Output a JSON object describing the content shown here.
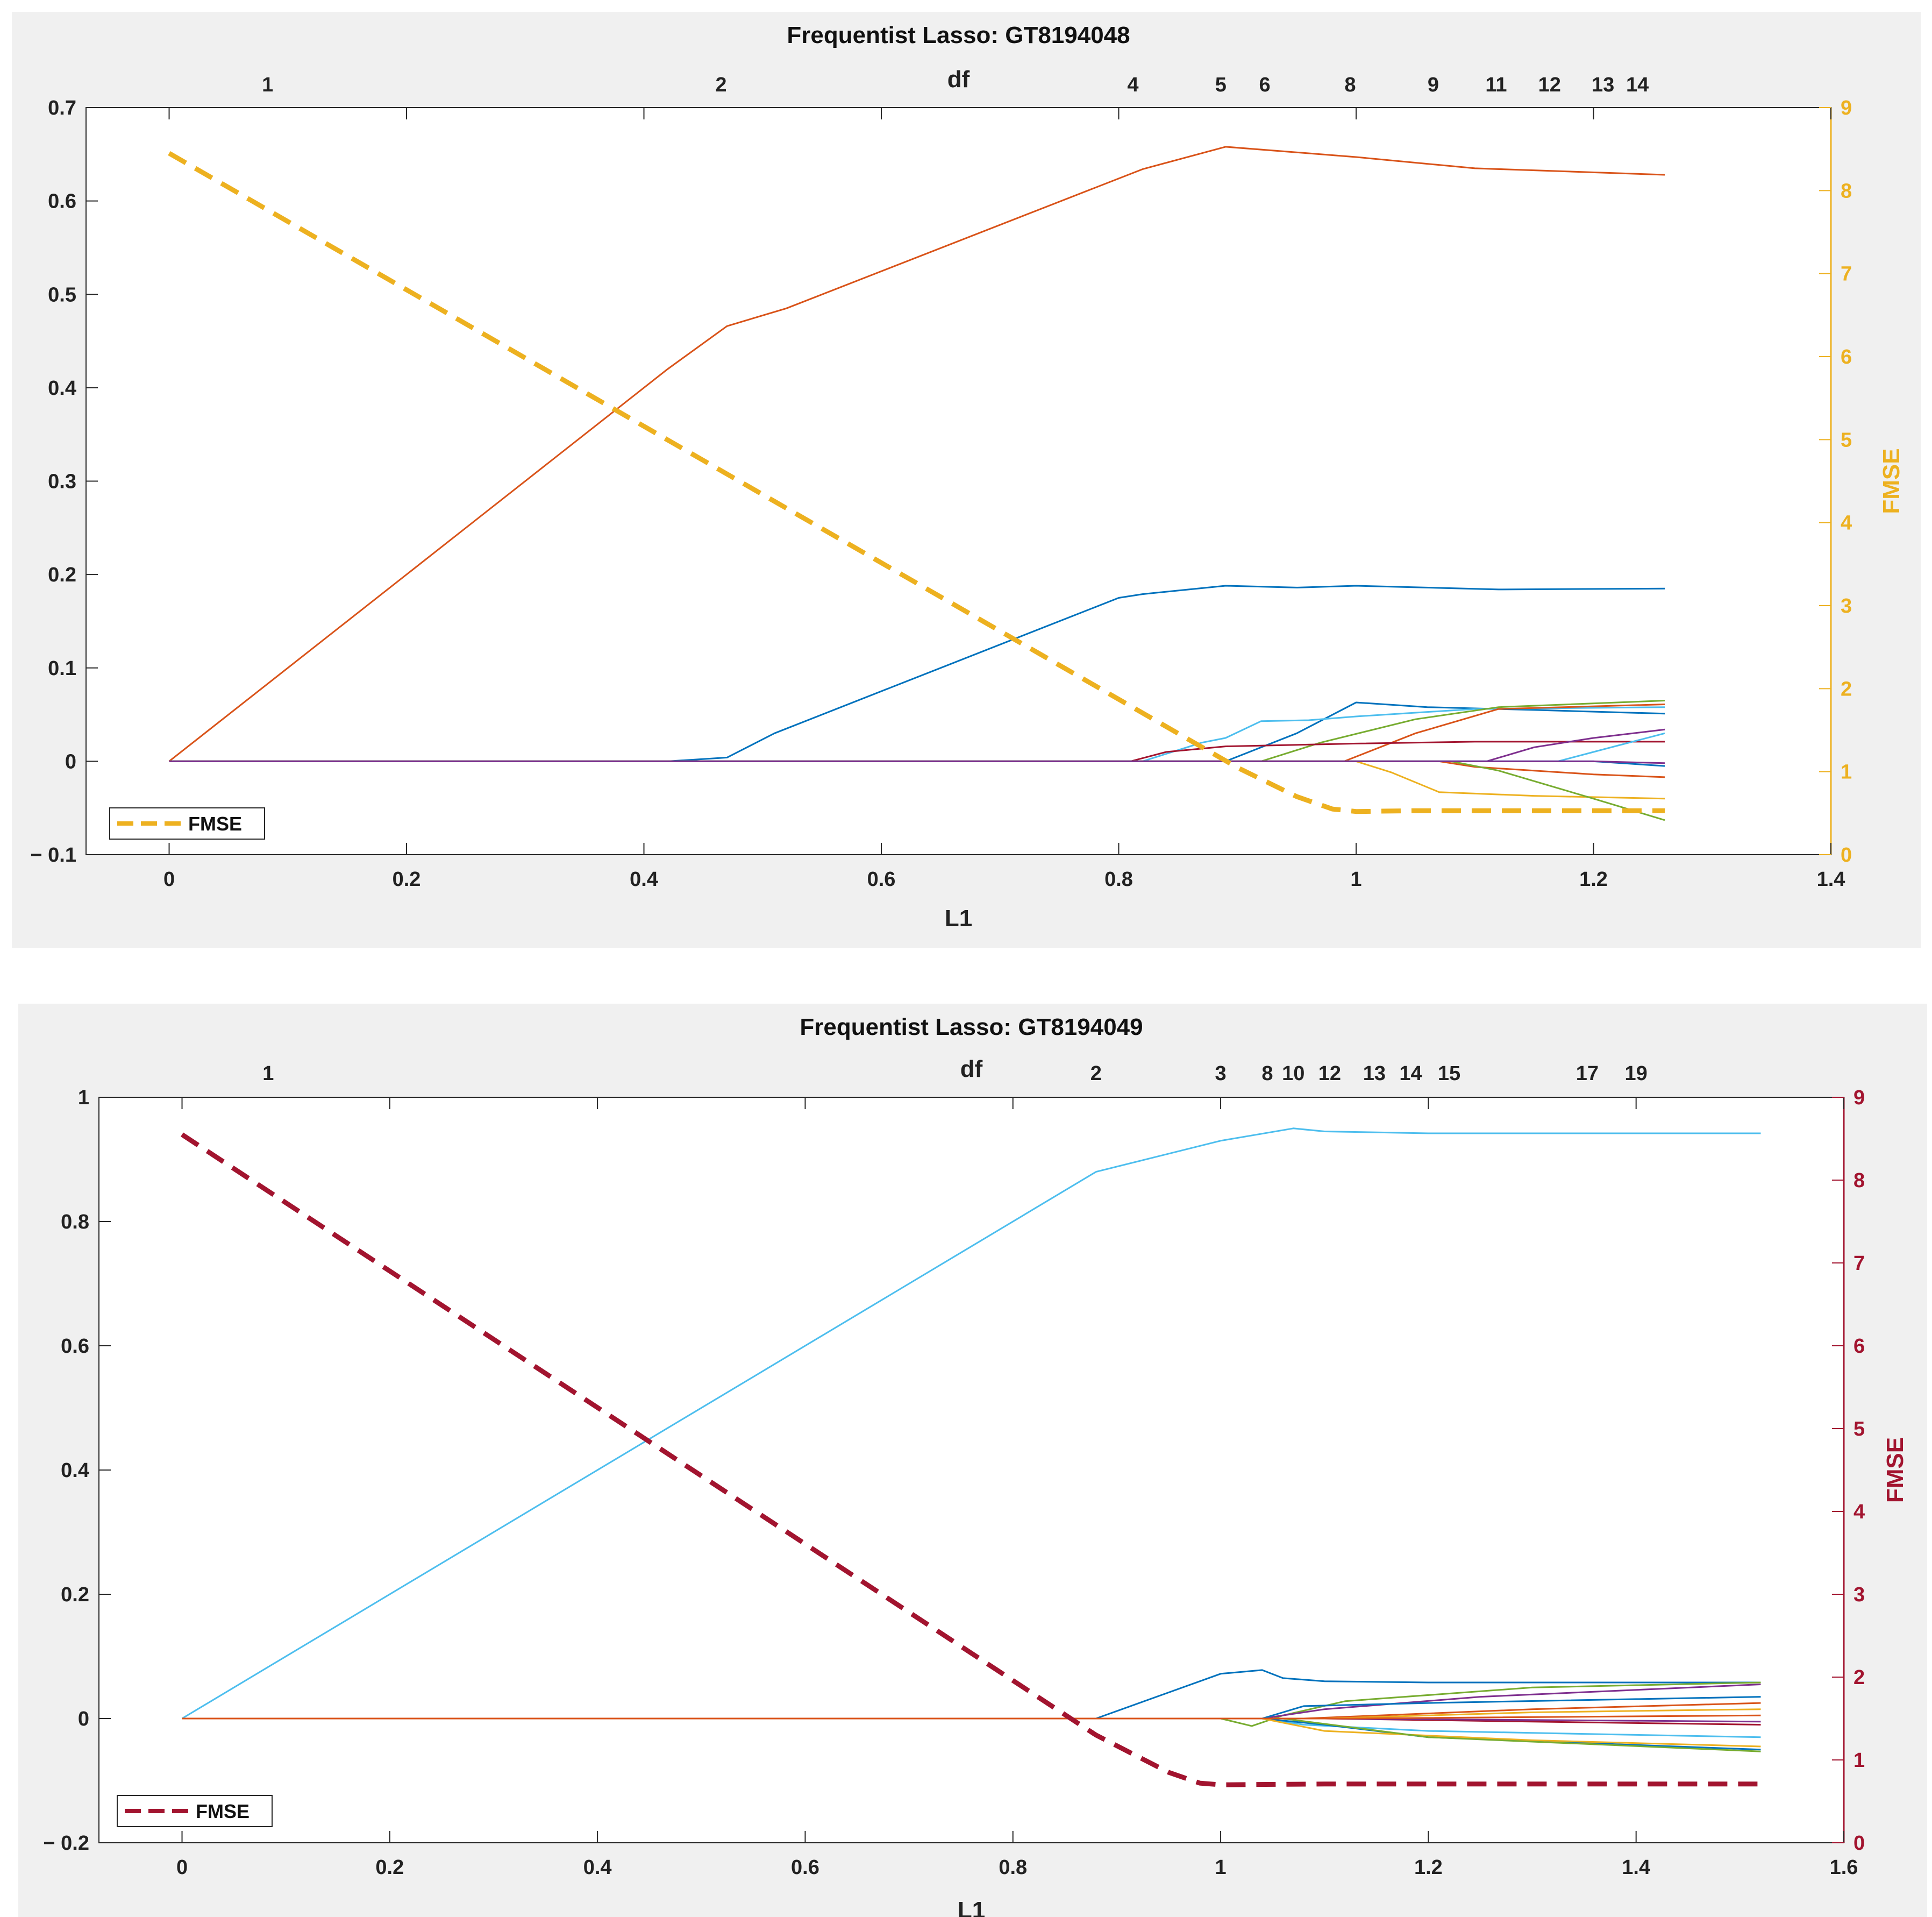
{
  "chart_data": [
    {
      "type": "line",
      "title": "Frequentist Lasso: GT8194048",
      "xlabel": "L1",
      "ylabel": "",
      "y2label": "FMSE",
      "toplabel": "df",
      "xlim": [
        -0.07,
        1.4
      ],
      "ylim": [
        -0.1,
        0.7
      ],
      "y2lim": [
        0,
        9
      ],
      "xticks": [
        0,
        0.2,
        0.4,
        0.6,
        0.8,
        1,
        1.2,
        1.4
      ],
      "xtick_labels": [
        "0",
        "0.2",
        "0.4",
        "0.6",
        "0.8",
        "1",
        "1.2",
        "1.4"
      ],
      "yticks": [
        -0.1,
        0,
        0.1,
        0.2,
        0.3,
        0.4,
        0.5,
        0.6,
        0.7
      ],
      "ytick_labels": [
        "− 0.1",
        "0",
        "0.1",
        "0.2",
        "0.3",
        "0.4",
        "0.5",
        "0.6",
        "0.7"
      ],
      "y2ticks": [
        0,
        1,
        2,
        3,
        4,
        5,
        6,
        7,
        8,
        9
      ],
      "y2tick_labels": [
        "0",
        "1",
        "2",
        "3",
        "4",
        "5",
        "6",
        "7",
        "8",
        "9"
      ],
      "top_ticks": [
        {
          "x": 0.083,
          "label": "1"
        },
        {
          "x": 0.465,
          "label": "2"
        },
        {
          "x": 0.812,
          "label": "4"
        },
        {
          "x": 0.886,
          "label": "5"
        },
        {
          "x": 0.923,
          "label": "6"
        },
        {
          "x": 0.995,
          "label": "8"
        },
        {
          "x": 1.065,
          "label": "9"
        },
        {
          "x": 1.118,
          "label": "11"
        },
        {
          "x": 1.163,
          "label": "12"
        },
        {
          "x": 1.208,
          "label": "13"
        },
        {
          "x": 1.237,
          "label": "14"
        }
      ],
      "fmse_color": "#EDB120",
      "fmse_axis_color": "#EDB120",
      "legend": {
        "label": "FMSE",
        "position": "bottom-left"
      },
      "fmse": {
        "x": [
          0,
          0.9,
          0.95,
          0.98,
          1.0,
          1.05,
          1.26
        ],
        "y": [
          8.45,
          1.05,
          0.7,
          0.55,
          0.52,
          0.53,
          0.53
        ]
      },
      "series": [
        {
          "color": "#D95319",
          "x": [
            0,
            0.42,
            0.47,
            0.52,
            0.82,
            0.89,
            1.0,
            1.1,
            1.26
          ],
          "y": [
            0,
            0.42,
            0.466,
            0.485,
            0.634,
            0.658,
            0.647,
            0.635,
            0.628
          ]
        },
        {
          "color": "#0072BD",
          "x": [
            0,
            0.42,
            0.47,
            0.51,
            0.8,
            0.82,
            0.89,
            0.95,
            1.0,
            1.12,
            1.26
          ],
          "y": [
            0,
            0,
            0.004,
            0.03,
            0.175,
            0.179,
            0.188,
            0.186,
            0.188,
            0.184,
            0.185
          ]
        },
        {
          "color": "#0072BD",
          "x": [
            0,
            0.89,
            0.95,
            1.0,
            1.06,
            1.15,
            1.26
          ],
          "y": [
            0,
            0,
            0.03,
            0.063,
            0.058,
            0.055,
            0.051
          ]
        },
        {
          "color": "#4DBEEE",
          "x": [
            0,
            0.82,
            0.87,
            0.89,
            0.92,
            0.96,
            1.0,
            1.1,
            1.26
          ],
          "y": [
            0,
            0,
            0.02,
            0.025,
            0.043,
            0.044,
            0.048,
            0.056,
            0.058
          ]
        },
        {
          "color": "#77AC30",
          "x": [
            0,
            0.92,
            0.97,
            1.05,
            1.12,
            1.26
          ],
          "y": [
            0,
            0,
            0.02,
            0.045,
            0.058,
            0.065
          ]
        },
        {
          "color": "#D95319",
          "x": [
            0,
            0.99,
            1.05,
            1.12,
            1.26
          ],
          "y": [
            0,
            0,
            0.03,
            0.056,
            0.061
          ]
        },
        {
          "color": "#A2142F",
          "x": [
            0,
            0.81,
            0.84,
            0.89,
            1.0,
            1.1,
            1.26
          ],
          "y": [
            0,
            0,
            0.01,
            0.016,
            0.019,
            0.021,
            0.021
          ]
        },
        {
          "color": "#7E2F8E",
          "x": [
            0,
            1.11,
            1.15,
            1.2,
            1.26
          ],
          "y": [
            0,
            0,
            0.015,
            0.025,
            0.034
          ]
        },
        {
          "color": "#4DBEEE",
          "x": [
            0,
            1.17,
            1.2,
            1.26
          ],
          "y": [
            0,
            0,
            0.01,
            0.03
          ]
        },
        {
          "color": "#EDB120",
          "x": [
            0,
            1.0,
            1.03,
            1.07,
            1.15,
            1.26
          ],
          "y": [
            0,
            0,
            -0.012,
            -0.033,
            -0.037,
            -0.04
          ]
        },
        {
          "color": "#D95319",
          "x": [
            0,
            1.07,
            1.1,
            1.2,
            1.26
          ],
          "y": [
            0,
            0,
            -0.006,
            -0.014,
            -0.017
          ]
        },
        {
          "color": "#77AC30",
          "x": [
            0,
            1.08,
            1.12,
            1.2,
            1.26
          ],
          "y": [
            0,
            0,
            -0.01,
            -0.04,
            -0.063
          ]
        },
        {
          "color": "#0072BD",
          "x": [
            0,
            1.2,
            1.26
          ],
          "y": [
            0,
            0,
            -0.005
          ]
        },
        {
          "color": "#7E2F8E",
          "x": [
            0,
            1.2,
            1.26
          ],
          "y": [
            0,
            0,
            -0.002
          ]
        }
      ]
    },
    {
      "type": "line",
      "title": "Frequentist Lasso: GT8194049",
      "xlabel": "L1",
      "ylabel": "",
      "y2label": "FMSE",
      "toplabel": "df",
      "xlim": [
        -0.08,
        1.6
      ],
      "ylim": [
        -0.2,
        1
      ],
      "y2lim": [
        0,
        9
      ],
      "xticks": [
        0,
        0.2,
        0.4,
        0.6,
        0.8,
        1,
        1.2,
        1.4,
        1.6
      ],
      "xtick_labels": [
        "0",
        "0.2",
        "0.4",
        "0.6",
        "0.8",
        "1",
        "1.2",
        "1.4",
        "1.6"
      ],
      "yticks": [
        -0.2,
        0,
        0.2,
        0.4,
        0.6,
        0.8,
        1
      ],
      "ytick_labels": [
        "− 0.2",
        "0",
        "0.2",
        "0.4",
        "0.6",
        "0.8",
        "1"
      ],
      "y2ticks": [
        0,
        1,
        2,
        3,
        4,
        5,
        6,
        7,
        8,
        9
      ],
      "y2tick_labels": [
        "0",
        "1",
        "2",
        "3",
        "4",
        "5",
        "6",
        "7",
        "8",
        "9"
      ],
      "top_ticks": [
        {
          "x": 0.083,
          "label": "1"
        },
        {
          "x": 0.88,
          "label": "2"
        },
        {
          "x": 1.0,
          "label": "3"
        },
        {
          "x": 1.045,
          "label": "8"
        },
        {
          "x": 1.07,
          "label": "10"
        },
        {
          "x": 1.105,
          "label": "12"
        },
        {
          "x": 1.148,
          "label": "13"
        },
        {
          "x": 1.183,
          "label": "14"
        },
        {
          "x": 1.22,
          "label": "15"
        },
        {
          "x": 1.353,
          "label": "17"
        },
        {
          "x": 1.4,
          "label": "19"
        }
      ],
      "fmse_color": "#A2142F",
      "fmse_axis_color": "#A2142F",
      "legend": {
        "label": "FMSE",
        "position": "bottom-left"
      },
      "fmse": {
        "x": [
          0,
          0.88,
          0.95,
          0.98,
          1.0,
          1.1,
          1.52
        ],
        "y": [
          8.55,
          1.3,
          0.85,
          0.72,
          0.7,
          0.71,
          0.71
        ]
      },
      "series": [
        {
          "color": "#4DBEEE",
          "x": [
            0,
            0.88,
            1.0,
            1.07,
            1.1,
            1.2,
            1.52
          ],
          "y": [
            0,
            0.88,
            0.93,
            0.95,
            0.945,
            0.942,
            0.942
          ]
        },
        {
          "color": "#0072BD",
          "x": [
            0,
            0.88,
            1.0,
            1.04,
            1.06,
            1.1,
            1.2,
            1.52
          ],
          "y": [
            0,
            0,
            0.072,
            0.078,
            0.065,
            0.06,
            0.058,
            0.058
          ]
        },
        {
          "color": "#77AC30",
          "x": [
            0,
            1.0,
            1.03,
            1.06,
            1.12,
            1.3,
            1.52
          ],
          "y": [
            0,
            0,
            -0.012,
            0.005,
            0.028,
            0.05,
            0.058
          ]
        },
        {
          "color": "#7E2F8E",
          "x": [
            0,
            1.04,
            1.1,
            1.25,
            1.52
          ],
          "y": [
            0,
            0,
            0.015,
            0.035,
            0.055
          ]
        },
        {
          "color": "#0072BD",
          "x": [
            0,
            1.04,
            1.08,
            1.2,
            1.52
          ],
          "y": [
            0,
            0,
            0.02,
            0.025,
            0.035
          ]
        },
        {
          "color": "#D95319",
          "x": [
            0,
            1.08,
            1.3,
            1.52
          ],
          "y": [
            0,
            0,
            0.015,
            0.025
          ]
        },
        {
          "color": "#EDB120",
          "x": [
            0,
            1.1,
            1.3,
            1.52
          ],
          "y": [
            0,
            0,
            0.01,
            0.015
          ]
        },
        {
          "color": "#A2142F",
          "x": [
            0,
            1.1,
            1.3,
            1.52
          ],
          "y": [
            0,
            0,
            -0.005,
            -0.01
          ]
        },
        {
          "color": "#4DBEEE",
          "x": [
            0,
            1.04,
            1.08,
            1.2,
            1.52
          ],
          "y": [
            0,
            0,
            -0.01,
            -0.02,
            -0.03
          ]
        },
        {
          "color": "#0072BD",
          "x": [
            0,
            1.04,
            1.1,
            1.2,
            1.52
          ],
          "y": [
            0,
            0,
            -0.01,
            -0.03,
            -0.05
          ]
        },
        {
          "color": "#EDB120",
          "x": [
            0,
            1.04,
            1.1,
            1.3,
            1.52
          ],
          "y": [
            0,
            0,
            -0.02,
            -0.035,
            -0.045
          ]
        },
        {
          "color": "#77AC30",
          "x": [
            0,
            1.06,
            1.2,
            1.52
          ],
          "y": [
            0,
            0,
            -0.03,
            -0.053
          ]
        },
        {
          "color": "#7E2F8E",
          "x": [
            0,
            1.1,
            1.52
          ],
          "y": [
            0,
            0,
            -0.005
          ]
        },
        {
          "color": "#D95319",
          "x": [
            0,
            1.12,
            1.52
          ],
          "y": [
            0,
            0,
            0.005
          ]
        }
      ]
    }
  ]
}
